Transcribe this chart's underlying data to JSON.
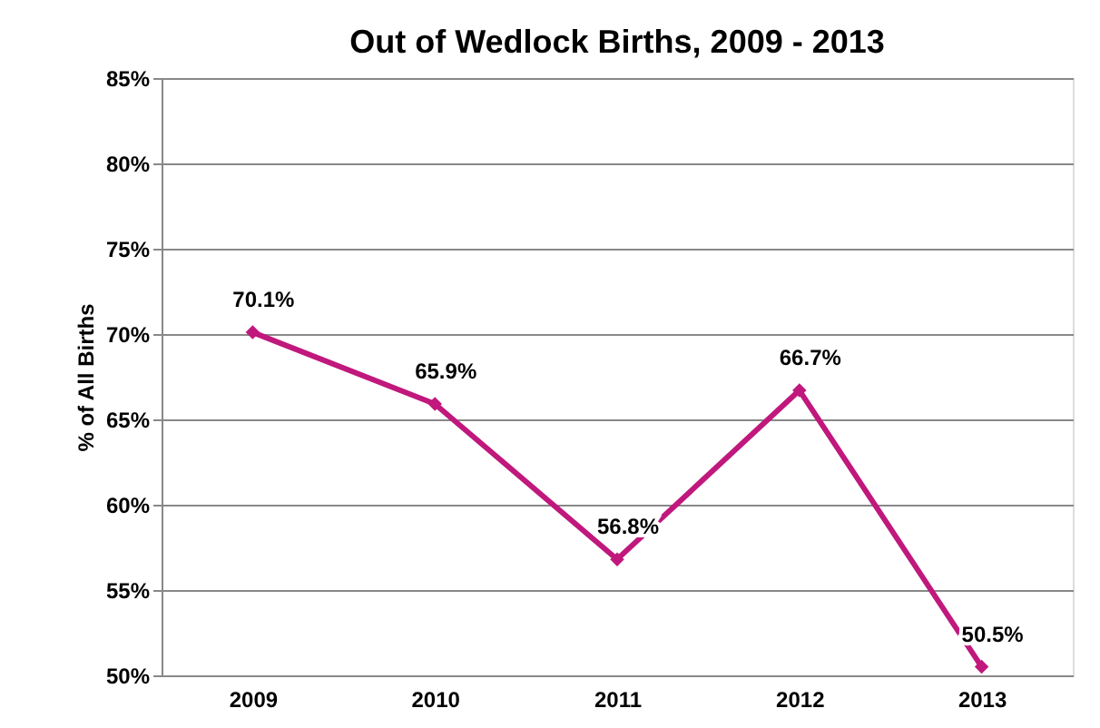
{
  "chart_data": {
    "type": "line",
    "title": "Out of Wedlock Births, 2009 - 2013",
    "ylabel": "% of All Births",
    "categories": [
      "2009",
      "2010",
      "2011",
      "2012",
      "2013"
    ],
    "series": [
      {
        "color": "#c0187c",
        "values": [
          70.1,
          65.9,
          56.8,
          66.7,
          50.5
        ],
        "value_labels": [
          "70.1%",
          "65.9%",
          "56.8%",
          "66.7%",
          "50.5%"
        ]
      }
    ],
    "ylim": [
      50,
      85
    ],
    "yticks": [
      {
        "value": 50,
        "label": "50%"
      },
      {
        "value": 55,
        "label": "55%"
      },
      {
        "value": 60,
        "label": "60%"
      },
      {
        "value": 65,
        "label": "65%"
      },
      {
        "value": 70,
        "label": "70%"
      },
      {
        "value": 75,
        "label": "75%"
      },
      {
        "value": 80,
        "label": "80%"
      },
      {
        "value": 85,
        "label": "85%"
      }
    ],
    "grid": "y",
    "marker": "diamond",
    "line_style": "solid"
  }
}
